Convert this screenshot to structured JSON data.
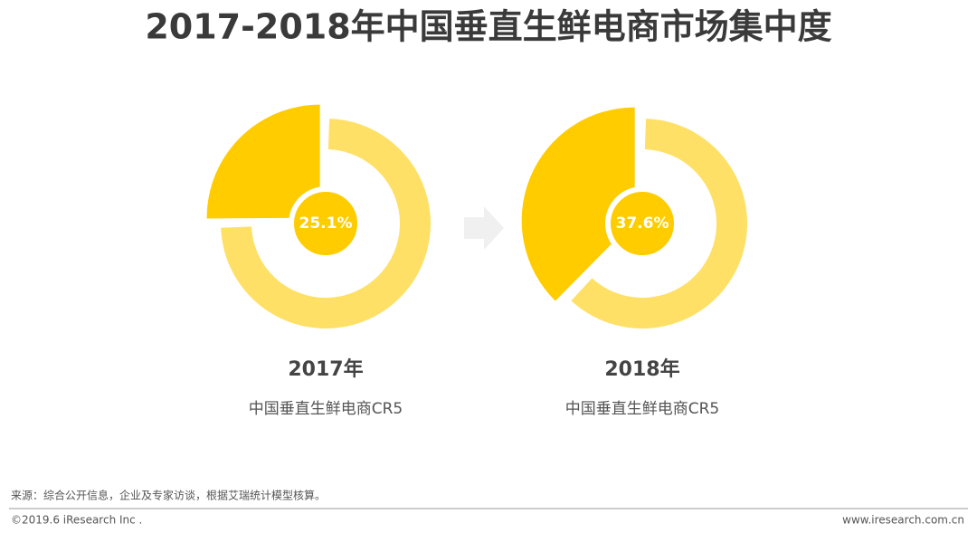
{
  "title": "2017-2018年中国垂直生鲜电商市场集中度",
  "chart_data": [
    {
      "type": "pie",
      "title": "2017年",
      "subtitle": "中国垂直生鲜电商CR5",
      "values": [
        25.1,
        74.9
      ],
      "value_labels": [
        "25.1%",
        null
      ],
      "colors": [
        "#ffcc00",
        "#ffe066"
      ]
    },
    {
      "type": "pie",
      "title": "2018年",
      "subtitle": "中国垂直生鲜电商CR5",
      "values": [
        37.6,
        62.4
      ],
      "value_labels": [
        "37.6%",
        null
      ],
      "colors": [
        "#ffcc00",
        "#ffe066"
      ]
    }
  ],
  "footer": {
    "source": "来源：综合公开信息，企业及专家访谈，根据艾瑞统计模型核算。",
    "copyright": "©2019.6 iResearch Inc .",
    "website": "www.iresearch.com.cn"
  }
}
